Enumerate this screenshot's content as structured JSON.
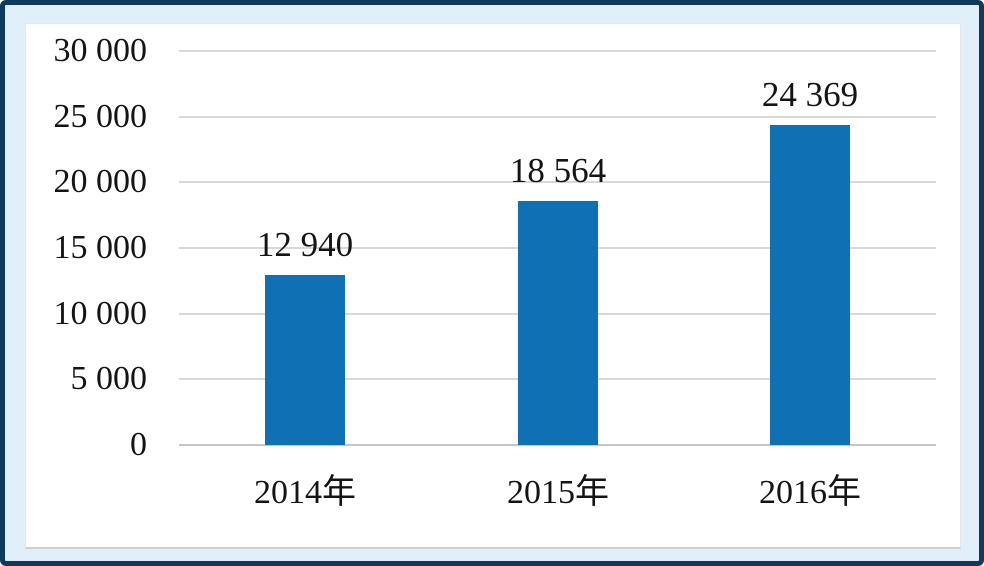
{
  "figure": {
    "frame_color": "#0E3A5C",
    "matte_color": "#E0EFFA",
    "panel_color": "#FFFFFF"
  },
  "chart_data": {
    "type": "bar",
    "title": "",
    "categories": [
      "2014年",
      "2015年",
      "2016年"
    ],
    "values": [
      12940,
      18564,
      24369
    ],
    "value_labels": [
      "12 940",
      "18 564",
      "24 369"
    ],
    "y_ticks": [
      {
        "value": 30000,
        "label": "30 000"
      },
      {
        "value": 25000,
        "label": "25 000"
      },
      {
        "value": 20000,
        "label": "20 000"
      },
      {
        "value": 15000,
        "label": "15 000"
      },
      {
        "value": 10000,
        "label": "10 000"
      },
      {
        "value": 5000,
        "label": "5 000"
      },
      {
        "value": 0,
        "label": "0"
      }
    ],
    "ylim": [
      0,
      30000
    ],
    "grid": true,
    "legend": "none",
    "xlabel": "",
    "ylabel": "",
    "bar_color": "#1070B4",
    "gridline_color": "#D8D8D8",
    "axis_line_color": "#C6C6C6",
    "text_color": "#141414"
  }
}
